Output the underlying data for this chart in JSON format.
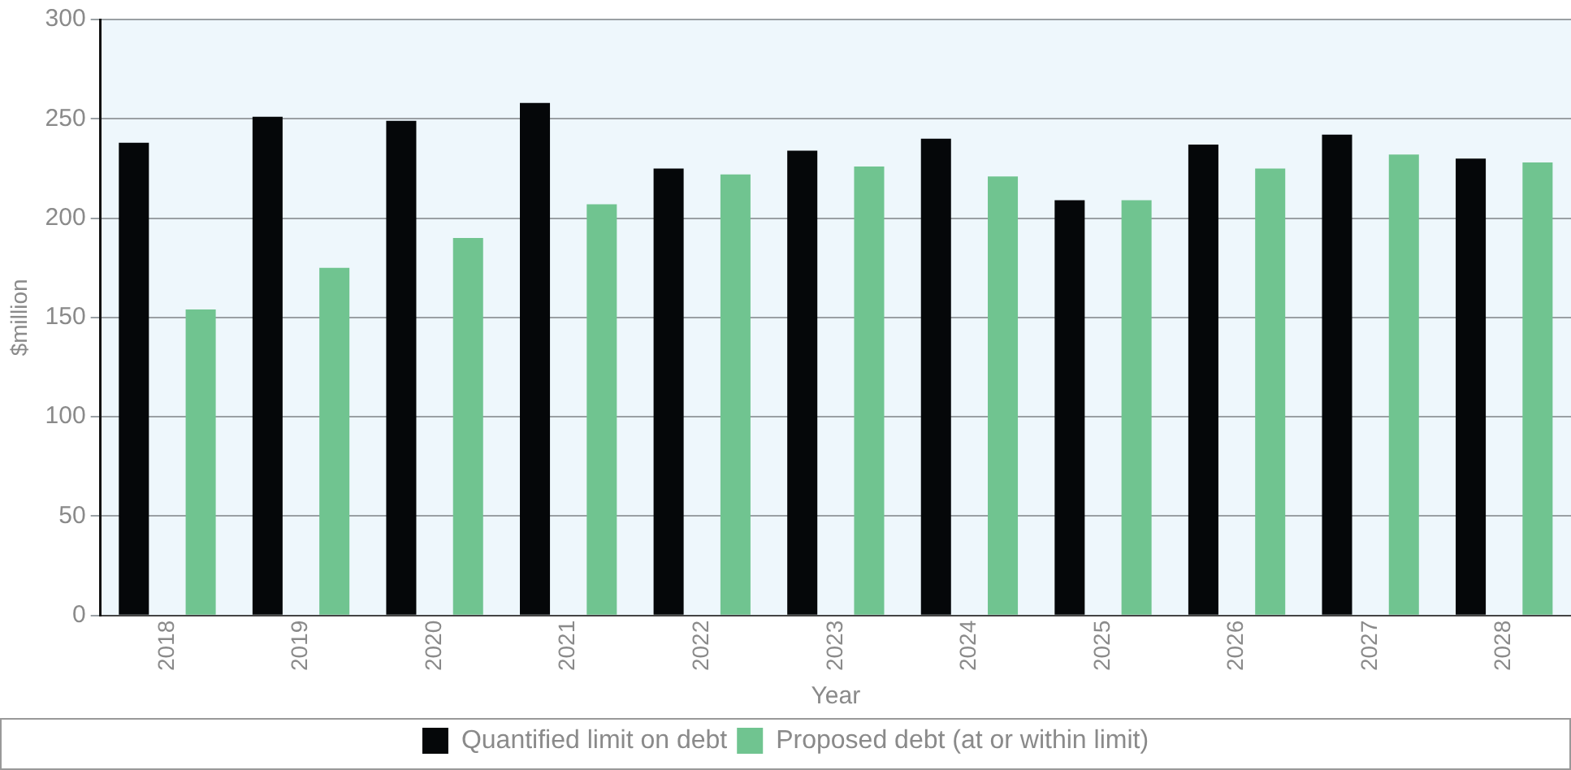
{
  "chart_data": {
    "type": "bar",
    "xlabel": "Year",
    "ylabel": "$million",
    "categories": [
      "2018",
      "2019",
      "2020",
      "2021",
      "2022",
      "2023",
      "2024",
      "2025",
      "2026",
      "2027",
      "2028"
    ],
    "series": [
      {
        "name": "Quantified limit on debt",
        "color": "#050709",
        "values": [
          238,
          251,
          249,
          258,
          225,
          234,
          240,
          209,
          237,
          242,
          230
        ]
      },
      {
        "name": "Proposed debt (at or within limit)",
        "color": "#70c490",
        "values": [
          154,
          175,
          190,
          207,
          222,
          226,
          221,
          209,
          225,
          232,
          228
        ]
      }
    ],
    "ylim": [
      0,
      300
    ],
    "yticks": [
      0,
      50,
      100,
      150,
      200,
      250,
      300
    ],
    "grid": "y",
    "legend": "bottom"
  }
}
